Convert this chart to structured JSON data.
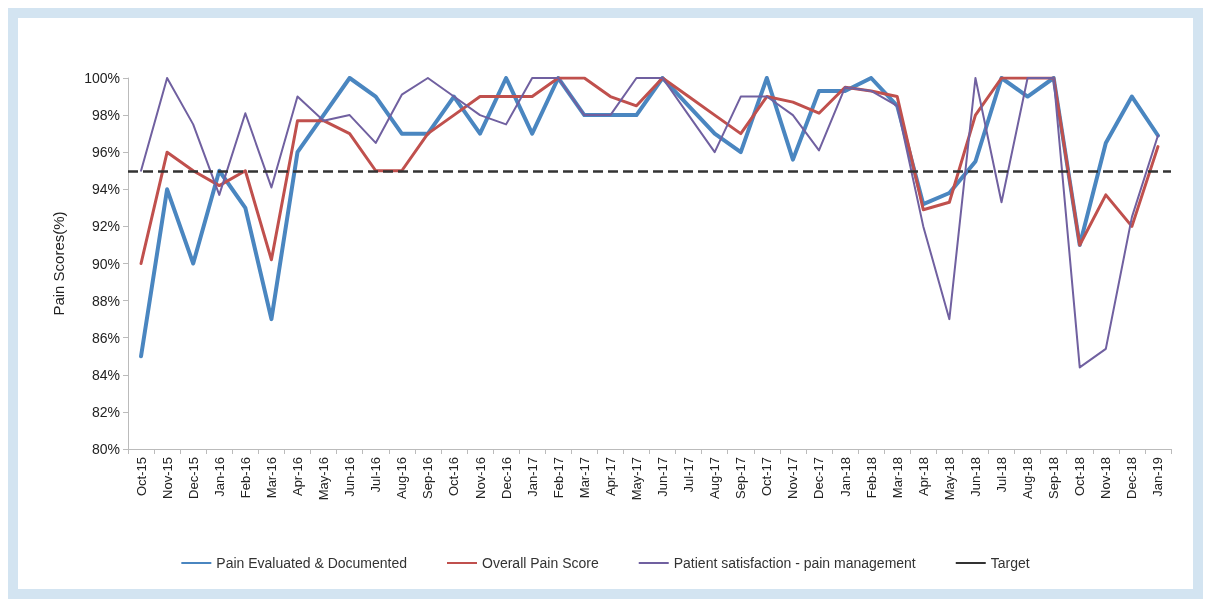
{
  "chart_data": {
    "type": "line",
    "ylabel": "Pain Scores(%)",
    "categories": [
      "Oct-15",
      "Nov-15",
      "Dec-15",
      "Jan-16",
      "Feb-16",
      "Mar-16",
      "Apr-16",
      "May-16",
      "Jun-16",
      "Jul-16",
      "Aug-16",
      "Sep-16",
      "Oct-16",
      "Nov-16",
      "Dec-16",
      "Jan-17",
      "Feb-17",
      "Mar-17",
      "Apr-17",
      "May-17",
      "Jun-17",
      "Jul-17",
      "Aug-17",
      "Sep-17",
      "Oct-17",
      "Nov-17",
      "Dec-17",
      "Jan-18",
      "Feb-18",
      "Mar-18",
      "Apr-18",
      "May-18",
      "Jun-18",
      "Jul-18",
      "Aug-18",
      "Sep-18",
      "Oct-18",
      "Nov-18",
      "Dec-18",
      "Jan-19"
    ],
    "series": [
      {
        "name": "Pain Evaluated & Documented",
        "color": "#4a86c0",
        "values": [
          85,
          94,
          90,
          95,
          93,
          87,
          96,
          98,
          100,
          99,
          97,
          97,
          99,
          97,
          100,
          97,
          100,
          98,
          98,
          98,
          100,
          98.5,
          97,
          96,
          100,
          95.6,
          99.3,
          99.3,
          100,
          98.5,
          93.2,
          93.8,
          95.5,
          100,
          99,
          100,
          91,
          96.5,
          99,
          96.9
        ]
      },
      {
        "name": "Overall Pain Score",
        "color": "#c0504d",
        "values": [
          90,
          96,
          95,
          94.2,
          95,
          90.2,
          97.7,
          97.7,
          97,
          95,
          95,
          97,
          98,
          99,
          99,
          99,
          100,
          100,
          99,
          98.5,
          100,
          99,
          98,
          97,
          99,
          98.7,
          98.1,
          99.5,
          99.3,
          99,
          92.9,
          93.3,
          98,
          100,
          100,
          100,
          91,
          93.7,
          92,
          96.3
        ]
      },
      {
        "name": "Patient satisfaction - pain management",
        "color": "#7060a0",
        "values": [
          95,
          100,
          97.5,
          93.7,
          98.1,
          94.1,
          99,
          97.7,
          98,
          96.5,
          99.1,
          100,
          99,
          98,
          97.5,
          100,
          100,
          98,
          98,
          100,
          100,
          98,
          96,
          99,
          99,
          98,
          96.1,
          99.5,
          99.3,
          98.5,
          92,
          87,
          100,
          93.3,
          100,
          100,
          84.4,
          85.4,
          92.5,
          96.9
        ]
      }
    ],
    "ref_lines": [
      {
        "axis": "y",
        "value": 95,
        "label": "Target",
        "color": "#333333",
        "line_style": "dashed"
      }
    ],
    "ylim": [
      80,
      100
    ],
    "yticks": [
      {
        "value": 80,
        "label": "80%"
      },
      {
        "value": 82,
        "label": "82%"
      },
      {
        "value": 84,
        "label": "84%"
      },
      {
        "value": 86,
        "label": "86%"
      },
      {
        "value": 88,
        "label": "88%"
      },
      {
        "value": 90,
        "label": "90%"
      },
      {
        "value": 92,
        "label": "92%"
      },
      {
        "value": 94,
        "label": "94%"
      },
      {
        "value": 96,
        "label": "96%"
      },
      {
        "value": 98,
        "label": "98%"
      },
      {
        "value": 100,
        "label": "100%"
      }
    ],
    "grid": false,
    "legend": "bottom",
    "marker": "none",
    "line_style": "solid"
  }
}
